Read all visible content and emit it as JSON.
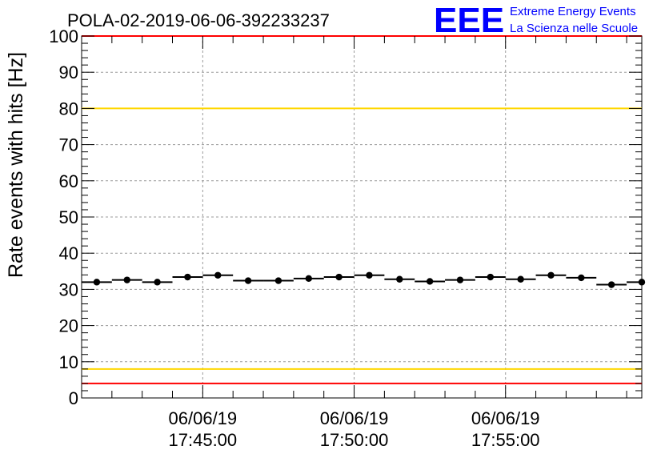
{
  "chart_data": {
    "type": "scatter",
    "title": "POLA-02-2019-06-06-392233237",
    "xlabel": "",
    "ylabel": "Rate events with hits [Hz]",
    "ylim": [
      0,
      100
    ],
    "yticks": [
      0,
      10,
      20,
      30,
      40,
      50,
      60,
      70,
      80,
      90,
      100
    ],
    "xlim": [
      "06/06/19 17:41:00",
      "06/06/19 17:59:30"
    ],
    "xticks": [
      {
        "date": "06/06/19",
        "time": "17:45:00"
      },
      {
        "date": "06/06/19",
        "time": "17:50:00"
      },
      {
        "date": "06/06/19",
        "time": "17:55:00"
      }
    ],
    "grid": true,
    "bin_width_seconds": 60,
    "series": [
      {
        "x": [
          "17:41:30",
          "17:42:30",
          "17:43:30",
          "17:44:30",
          "17:45:30",
          "17:46:30",
          "17:47:30",
          "17:48:30",
          "17:49:30",
          "17:50:30",
          "17:51:30",
          "17:52:30",
          "17:53:30",
          "17:54:30",
          "17:55:30",
          "17:56:30",
          "17:57:30",
          "17:58:30",
          "17:59:30"
        ],
        "values": [
          32.0,
          32.6,
          32.0,
          33.4,
          33.9,
          32.4,
          32.4,
          33.0,
          33.4,
          33.9,
          32.8,
          32.2,
          32.6,
          33.4,
          32.8,
          33.9,
          33.2,
          31.3,
          32.0
        ],
        "color": "#000000"
      }
    ],
    "reference_lines": [
      {
        "value": 80,
        "color": "#ffd700"
      },
      {
        "value": 8,
        "color": "#ffd700"
      },
      {
        "value": 4,
        "color": "#ff0000"
      },
      {
        "value": 100,
        "color": "#ff0000"
      }
    ]
  },
  "logo": {
    "mark": "EEE",
    "line1": "Extreme Energy Events",
    "line2": "La Scienza nelle Scuole",
    "color": "#0000ff"
  }
}
